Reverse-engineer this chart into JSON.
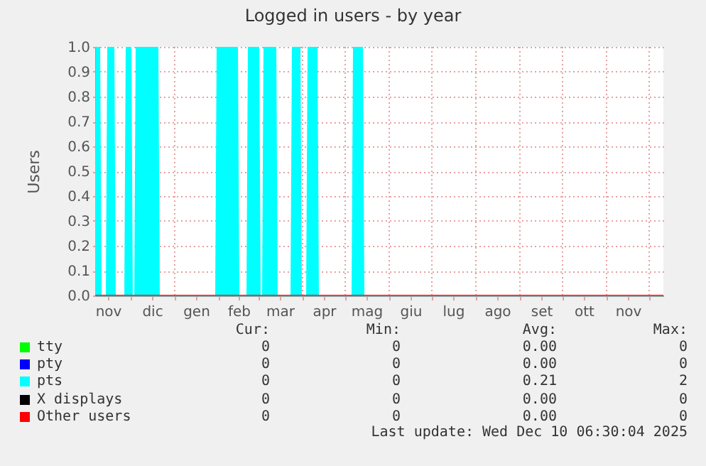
{
  "chart_data": {
    "type": "area",
    "title": "Logged in users - by year",
    "ylabel": "Users",
    "xlim": [
      "2024-11-06",
      "2025-12-11"
    ],
    "xticks": [
      {
        "value": "2024-11-15",
        "label": "nov"
      },
      {
        "value": "2024-12-01",
        "label": null
      },
      {
        "value": "2024-12-16",
        "label": "dic"
      },
      {
        "value": "2025-01-01",
        "label": null
      },
      {
        "value": "2025-01-16",
        "label": "gen"
      },
      {
        "value": "2025-02-01",
        "label": null
      },
      {
        "value": "2025-02-15",
        "label": "feb"
      },
      {
        "value": "2025-03-01",
        "label": null
      },
      {
        "value": "2025-03-16",
        "label": "mar"
      },
      {
        "value": "2025-04-01",
        "label": null
      },
      {
        "value": "2025-04-16",
        "label": "apr"
      },
      {
        "value": "2025-05-01",
        "label": null
      },
      {
        "value": "2025-05-16",
        "label": "mag"
      },
      {
        "value": "2025-06-01",
        "label": null
      },
      {
        "value": "2025-06-16",
        "label": "giu"
      },
      {
        "value": "2025-07-01",
        "label": null
      },
      {
        "value": "2025-07-16",
        "label": "lug"
      },
      {
        "value": "2025-08-01",
        "label": null
      },
      {
        "value": "2025-08-16",
        "label": "ago"
      },
      {
        "value": "2025-09-01",
        "label": null
      },
      {
        "value": "2025-09-16",
        "label": "set"
      },
      {
        "value": "2025-10-01",
        "label": null
      },
      {
        "value": "2025-10-16",
        "label": "ott"
      },
      {
        "value": "2025-11-01",
        "label": null
      },
      {
        "value": "2025-11-16",
        "label": "nov"
      },
      {
        "value": "2025-12-01",
        "label": null
      }
    ],
    "ylim": [
      0,
      1.0
    ],
    "yticks": [
      {
        "value": 0,
        "label": "0.0"
      },
      {
        "value": 0.1,
        "label": "0.1"
      },
      {
        "value": 0.2,
        "label": "0.2"
      },
      {
        "value": 0.3,
        "label": "0.3"
      },
      {
        "value": 0.4,
        "label": "0.4"
      },
      {
        "value": 0.5,
        "label": "0.5"
      },
      {
        "value": 0.6,
        "label": "0.6"
      },
      {
        "value": 0.7,
        "label": "0.7"
      },
      {
        "value": 0.8,
        "label": "0.8"
      },
      {
        "value": 0.9,
        "label": "0.9"
      },
      {
        "value": 1.0,
        "label": "1.0"
      }
    ],
    "grid": true,
    "legend": "bottom",
    "series": [
      {
        "name": "tty",
        "type": "line",
        "color": "#00ff00"
      },
      {
        "name": "pty",
        "type": "line",
        "color": "#0000ff"
      },
      {
        "name": "pts",
        "color": "#00ffff",
        "x": [
          "2024-11-06",
          "2024-11-07",
          "2024-11-09",
          "2024-11-10",
          "2024-11-14",
          "2024-11-15",
          "2024-11-19",
          "2024-11-20",
          "2024-11-27",
          "2024-11-28",
          "2024-12-01",
          "2024-12-02",
          "2024-12-04",
          "2024-12-05",
          "2024-12-20",
          "2024-12-21",
          "2025-01-30",
          "2025-01-31",
          "2025-02-14",
          "2025-02-15",
          "2025-02-21",
          "2025-02-22",
          "2025-03-01",
          "2025-03-02",
          "2025-03-04",
          "2025-03-05",
          "2025-03-13",
          "2025-03-14",
          "2025-03-24",
          "2025-03-25",
          "2025-03-30",
          "2025-03-31",
          "2025-04-04",
          "2025-04-05",
          "2025-04-11",
          "2025-04-12",
          "2025-05-06",
          "2025-05-07",
          "2025-05-13",
          "2025-05-14",
          "2025-12-11"
        ],
        "values": [
          0,
          1,
          1,
          0,
          0,
          1,
          1,
          0,
          0,
          1,
          1,
          0,
          0,
          1,
          1,
          0,
          0,
          1,
          1,
          0,
          0,
          1,
          1,
          0,
          0,
          1,
          1,
          0,
          0,
          1,
          1,
          0,
          0,
          1,
          1,
          0,
          0,
          1,
          1,
          0,
          0
        ]
      },
      {
        "name": "X displays",
        "type": "line",
        "color": "#000000"
      },
      {
        "name": "Other users",
        "type": "line",
        "color": "#ff0000",
        "x": [
          "2024-11-06",
          "2025-12-11"
        ],
        "values": [
          0,
          0
        ]
      }
    ],
    "annotations": [
      "Cur:",
      "Min:",
      "Avg:",
      "Max:",
      "0",
      "0",
      "0.00",
      "0",
      "0",
      "0",
      "0.00",
      "0",
      "0",
      "0",
      "0.21",
      "2",
      "0",
      "0",
      "0.00",
      "0",
      "0",
      "0",
      "0.00",
      "0",
      "Last update: Wed Dec 10 06:30:04 2025"
    ]
  }
}
